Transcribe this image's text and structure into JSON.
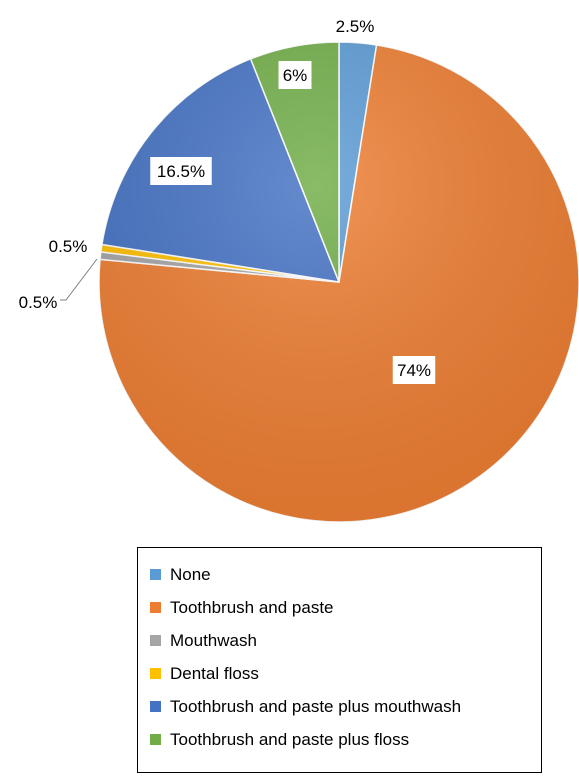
{
  "chart_data": {
    "type": "pie",
    "title": "",
    "categories": [
      "None",
      "Toothbrush and paste",
      "Mouthwash",
      "Dental floss",
      "Toothbrush and paste plus mouthwash",
      "Toothbrush and paste plus floss"
    ],
    "values": [
      2.5,
      74,
      0.5,
      0.5,
      16.5,
      6
    ],
    "data_labels": [
      "2.5%",
      "74%",
      "0.5%",
      "0.5%",
      "16.5%",
      "6%"
    ],
    "colors": [
      "#5b9bd5",
      "#ed7d31",
      "#a5a5a5",
      "#ffc000",
      "#4472c4",
      "#70ad47"
    ],
    "legend_position": "bottom"
  }
}
